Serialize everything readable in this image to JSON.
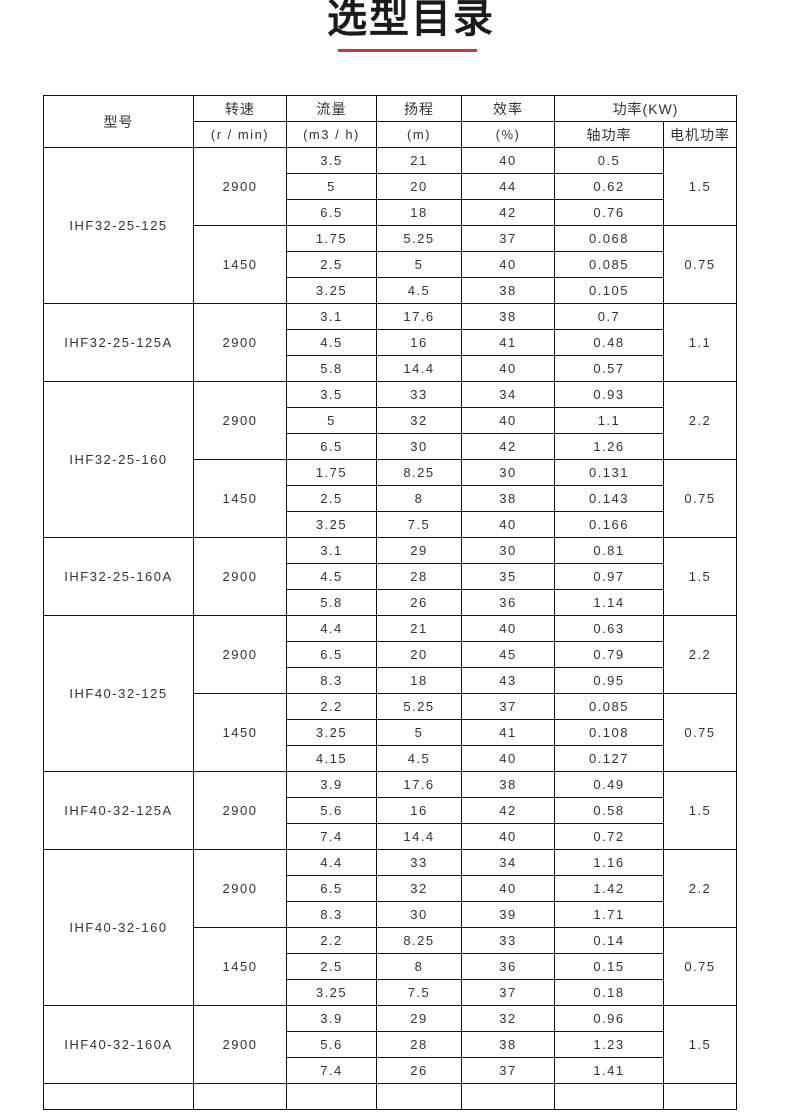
{
  "title": "选型目录",
  "accent_color": "#d7304a",
  "header": {
    "model": "型号",
    "speed": "转速",
    "speed_unit": "(r / min)",
    "flow": "流量",
    "flow_unit": "(m3 / h)",
    "head": "扬程",
    "head_unit": "(m)",
    "efficiency": "效率",
    "efficiency_unit": "(%)",
    "power": "功率(KW)",
    "shaft_power": "轴功率",
    "motor_power": "电机功率"
  },
  "models": [
    {
      "model": "IHF32-25-125",
      "groups": [
        {
          "speed": "2900",
          "motor": "1.5",
          "rows": [
            [
              "3.5",
              "21",
              "40",
              "0.5"
            ],
            [
              "5",
              "20",
              "44",
              "0.62"
            ],
            [
              "6.5",
              "18",
              "42",
              "0.76"
            ]
          ]
        },
        {
          "speed": "1450",
          "motor": "0.75",
          "rows": [
            [
              "1.75",
              "5.25",
              "37",
              "0.068"
            ],
            [
              "2.5",
              "5",
              "40",
              "0.085"
            ],
            [
              "3.25",
              "4.5",
              "38",
              "0.105"
            ]
          ]
        }
      ]
    },
    {
      "model": "IHF32-25-125A",
      "groups": [
        {
          "speed": "2900",
          "motor": "1.1",
          "rows": [
            [
              "3.1",
              "17.6",
              "38",
              "0.7"
            ],
            [
              "4.5",
              "16",
              "41",
              "0.48"
            ],
            [
              "5.8",
              "14.4",
              "40",
              "0.57"
            ]
          ]
        }
      ]
    },
    {
      "model": "IHF32-25-160",
      "groups": [
        {
          "speed": "2900",
          "motor": "2.2",
          "rows": [
            [
              "3.5",
              "33",
              "34",
              "0.93"
            ],
            [
              "5",
              "32",
              "40",
              "1.1"
            ],
            [
              "6.5",
              "30",
              "42",
              "1.26"
            ]
          ]
        },
        {
          "speed": "1450",
          "motor": "0.75",
          "rows": [
            [
              "1.75",
              "8.25",
              "30",
              "0.131"
            ],
            [
              "2.5",
              "8",
              "38",
              "0.143"
            ],
            [
              "3.25",
              "7.5",
              "40",
              "0.166"
            ]
          ]
        }
      ]
    },
    {
      "model": "IHF32-25-160A",
      "groups": [
        {
          "speed": "2900",
          "motor": "1.5",
          "rows": [
            [
              "3.1",
              "29",
              "30",
              "0.81"
            ],
            [
              "4.5",
              "28",
              "35",
              "0.97"
            ],
            [
              "5.8",
              "26",
              "36",
              "1.14"
            ]
          ]
        }
      ]
    },
    {
      "model": "IHF40-32-125",
      "groups": [
        {
          "speed": "2900",
          "motor": "2.2",
          "rows": [
            [
              "4.4",
              "21",
              "40",
              "0.63"
            ],
            [
              "6.5",
              "20",
              "45",
              "0.79"
            ],
            [
              "8.3",
              "18",
              "43",
              "0.95"
            ]
          ]
        },
        {
          "speed": "1450",
          "motor": "0.75",
          "rows": [
            [
              "2.2",
              "5.25",
              "37",
              "0.085"
            ],
            [
              "3.25",
              "5",
              "41",
              "0.108"
            ],
            [
              "4.15",
              "4.5",
              "40",
              "0.127"
            ]
          ]
        }
      ]
    },
    {
      "model": "IHF40-32-125A",
      "groups": [
        {
          "speed": "2900",
          "motor": "1.5",
          "rows": [
            [
              "3.9",
              "17.6",
              "38",
              "0.49"
            ],
            [
              "5.6",
              "16",
              "42",
              "0.58"
            ],
            [
              "7.4",
              "14.4",
              "40",
              "0.72"
            ]
          ]
        }
      ]
    },
    {
      "model": "IHF40-32-160",
      "groups": [
        {
          "speed": "2900",
          "motor": "2.2",
          "rows": [
            [
              "4.4",
              "33",
              "34",
              "1.16"
            ],
            [
              "6.5",
              "32",
              "40",
              "1.42"
            ],
            [
              "8.3",
              "30",
              "39",
              "1.71"
            ]
          ]
        },
        {
          "speed": "1450",
          "motor": "0.75",
          "rows": [
            [
              "2.2",
              "8.25",
              "33",
              "0.14"
            ],
            [
              "2.5",
              "8",
              "36",
              "0.15"
            ],
            [
              "3.25",
              "7.5",
              "37",
              "0.18"
            ]
          ]
        }
      ]
    },
    {
      "model": "IHF40-32-160A",
      "groups": [
        {
          "speed": "2900",
          "motor": "1.5",
          "rows": [
            [
              "3.9",
              "29",
              "32",
              "0.96"
            ],
            [
              "5.6",
              "28",
              "38",
              "1.23"
            ],
            [
              "7.4",
              "26",
              "37",
              "1.41"
            ]
          ]
        }
      ]
    }
  ]
}
